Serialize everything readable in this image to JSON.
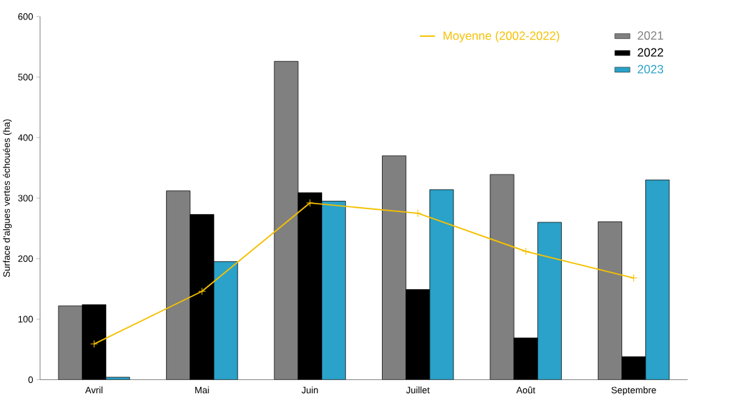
{
  "chart_data": {
    "type": "bar",
    "ylabel": "Surface d'algues vertes échouées (ha)",
    "categories": [
      "Avril",
      "Mai",
      "Juin",
      "Juillet",
      "Août",
      "Septembre"
    ],
    "ylim": [
      0,
      600
    ],
    "yticks": [
      0,
      100,
      200,
      300,
      400,
      500,
      600
    ],
    "legend": "top right",
    "marker": "cross",
    "grid": false,
    "series": [
      {
        "name": "2021",
        "color": "#808080",
        "values": [
          122,
          312,
          526,
          370,
          339,
          261
        ]
      },
      {
        "name": "2022",
        "color": "#000000",
        "values": [
          124,
          273,
          309,
          149,
          69,
          38
        ]
      },
      {
        "name": "2023",
        "color": "#2aa2c9",
        "values": [
          4,
          195,
          295,
          314,
          260,
          330
        ]
      },
      {
        "name": "Moyenne (2002-2022)",
        "type": "line",
        "color": "#f5c000",
        "values": [
          59,
          146,
          292,
          275,
          212,
          168
        ]
      }
    ]
  }
}
